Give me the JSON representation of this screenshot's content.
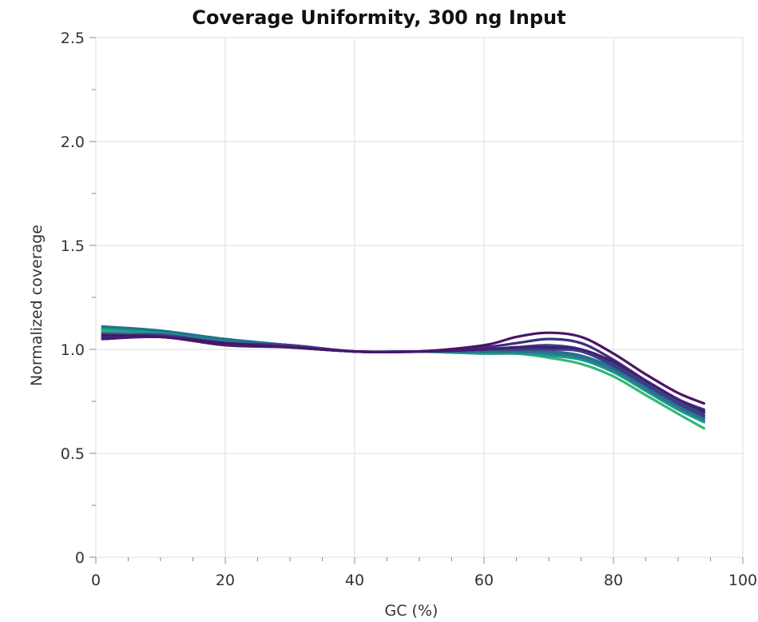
{
  "chart_data": {
    "type": "line",
    "title": "Coverage Uniformity, 300 ng Input",
    "xlabel": "GC (%)",
    "ylabel": "Normalized coverage",
    "xlim": [
      0,
      100
    ],
    "ylim": [
      0,
      2.5
    ],
    "x_ticks": [
      0,
      20,
      40,
      60,
      80,
      100
    ],
    "y_ticks": [
      0,
      0.5,
      1.0,
      1.5,
      2.0,
      2.5
    ],
    "x_tick_labels": [
      "0",
      "20",
      "40",
      "60",
      "80",
      "100"
    ],
    "y_tick_labels": [
      "0",
      "0.5",
      "1.0",
      "1.5",
      "2.0",
      "2.5"
    ],
    "grid": true,
    "legend": "none",
    "x": [
      1,
      10,
      20,
      30,
      40,
      50,
      60,
      65,
      70,
      75,
      80,
      85,
      90,
      94
    ],
    "series": [
      {
        "color": "#4a1468",
        "values": [
          1.07,
          1.06,
          1.03,
          1.01,
          0.99,
          0.99,
          1.02,
          1.06,
          1.08,
          1.06,
          0.98,
          0.88,
          0.79,
          0.74
        ]
      },
      {
        "color": "#3b2f7e",
        "values": [
          1.06,
          1.06,
          1.03,
          1.01,
          0.99,
          0.99,
          1.01,
          1.03,
          1.05,
          1.03,
          0.95,
          0.85,
          0.76,
          0.71
        ]
      },
      {
        "color": "#2e4b8a",
        "values": [
          1.05,
          1.06,
          1.03,
          1.02,
          0.99,
          0.99,
          1.0,
          1.01,
          1.02,
          1.0,
          0.93,
          0.84,
          0.75,
          0.69
        ]
      },
      {
        "color": "#23728e",
        "values": [
          1.11,
          1.09,
          1.05,
          1.02,
          0.99,
          0.99,
          0.99,
          0.99,
          0.99,
          0.97,
          0.91,
          0.82,
          0.73,
          0.67
        ]
      },
      {
        "color": "#1f9a89",
        "values": [
          1.1,
          1.08,
          1.04,
          1.02,
          0.99,
          0.99,
          0.98,
          0.98,
          0.97,
          0.95,
          0.89,
          0.8,
          0.71,
          0.65
        ]
      },
      {
        "color": "#35b779",
        "values": [
          1.09,
          1.08,
          1.04,
          1.02,
          0.99,
          0.99,
          0.98,
          0.98,
          0.96,
          0.93,
          0.87,
          0.78,
          0.69,
          0.62
        ]
      },
      {
        "color": "#2c7a8e",
        "values": [
          1.08,
          1.07,
          1.04,
          1.02,
          0.99,
          0.99,
          0.99,
          0.99,
          0.98,
          0.96,
          0.9,
          0.81,
          0.72,
          0.66
        ]
      },
      {
        "color": "#3f3a85",
        "values": [
          1.06,
          1.07,
          1.03,
          1.02,
          0.99,
          0.99,
          1.0,
          1.0,
          1.0,
          0.99,
          0.92,
          0.83,
          0.74,
          0.68
        ]
      },
      {
        "color": "#471d6e",
        "values": [
          1.05,
          1.06,
          1.02,
          1.01,
          0.99,
          0.99,
          1.0,
          1.01,
          1.01,
          1.0,
          0.94,
          0.85,
          0.76,
          0.7
        ]
      }
    ]
  }
}
